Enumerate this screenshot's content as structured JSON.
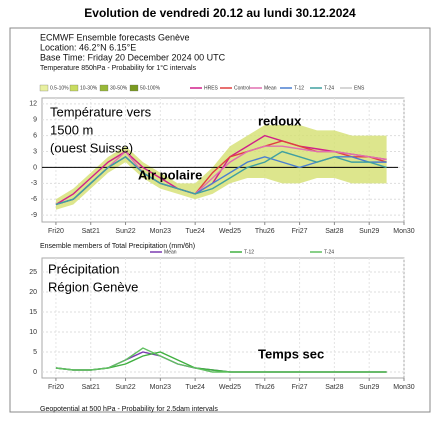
{
  "title": "Evolution de vendredi 20.12 au lundi 30.12.2024",
  "header": [
    "ECMWF Ensemble forecasts Genève",
    "Location: 46.2°N 6.15°E",
    "Base Time: Friday 20 December 2024 00 UTC",
    "Temperature 850hPa - Probability for 1°C intervals"
  ],
  "footer": "Geopotential at 500 hPa - Probability for 2.5dam intervals",
  "chart_data": [
    {
      "type": "line",
      "prob_legend": [
        {
          "label": "0.5-10%",
          "color": "#e8f0a0"
        },
        {
          "label": "10-30%",
          "color": "#c8dc60"
        },
        {
          "label": "30-50%",
          "color": "#98b838"
        },
        {
          "label": "50-100%",
          "color": "#7a9a20"
        }
      ],
      "legend_extra": [
        {
          "label": "ENS",
          "color": "#c8c8c8"
        }
      ],
      "x": [
        0,
        0.5,
        1,
        1.5,
        2,
        2.5,
        3,
        3.5,
        4,
        4.5,
        5,
        5.5,
        6,
        6.5,
        7,
        7.5,
        8,
        8.5,
        9,
        9.5
      ],
      "band": {
        "color": "#d4e070",
        "low": [
          -8,
          -7,
          -4,
          -1,
          1,
          -2,
          -4,
          -5,
          -6,
          -5,
          -3,
          -2,
          -2,
          -3,
          -3,
          -2,
          -2,
          -3,
          -3,
          -3
        ],
        "high": [
          -6,
          -4,
          -1,
          2,
          4,
          1,
          -1,
          -3,
          -3,
          0,
          4,
          6,
          8,
          8,
          8,
          7,
          7,
          6,
          6,
          6
        ]
      },
      "series": [
        {
          "name": "HRES",
          "color": "#d0208a",
          "values": [
            -7,
            -5,
            -2,
            1,
            3,
            0,
            -2,
            -4,
            -5,
            -3,
            2,
            4,
            6,
            5,
            4,
            3.5,
            3,
            2.5,
            2,
            1.5
          ]
        },
        {
          "name": "Control",
          "color": "#e04040",
          "values": [
            -7,
            -6,
            -3,
            0,
            2,
            -1,
            -3,
            -4,
            -5,
            -1,
            2,
            3,
            4,
            5,
            4,
            3,
            3,
            2,
            2,
            1
          ]
        },
        {
          "name": "Mean",
          "color": "#e070b0",
          "values": [
            -7,
            -6,
            -3,
            0,
            3,
            -1,
            -3,
            -4,
            -5,
            -2,
            1,
            3,
            4,
            4,
            3.5,
            3,
            3,
            2.5,
            2,
            1.5
          ]
        },
        {
          "name": "T-12",
          "color": "#4a7fd0",
          "values": [
            -7,
            -6,
            -3,
            0,
            2,
            -1,
            -3,
            -4,
            -5,
            -3,
            -1,
            1,
            2,
            1,
            0,
            1,
            2,
            2,
            1,
            1
          ]
        },
        {
          "name": "T-24",
          "color": "#40a0a0",
          "values": [
            -7,
            -6,
            -3,
            0,
            2,
            -1,
            -3,
            -4,
            -5,
            -4,
            -2,
            0,
            1,
            3,
            2,
            1,
            2,
            1,
            1,
            0
          ]
        }
      ],
      "hline": 0,
      "xlim": [
        -0.4,
        10
      ],
      "xticks": [
        {
          "value": 0,
          "label": "Fri20"
        },
        {
          "value": 1,
          "label": "Sat21"
        },
        {
          "value": 2,
          "label": "Sun22",
          "color": "#d03030"
        },
        {
          "value": 3,
          "label": "Mon23"
        },
        {
          "value": 4,
          "label": "Tue24"
        },
        {
          "value": 5,
          "label": "Wed25"
        },
        {
          "value": 6,
          "label": "Thu26"
        },
        {
          "value": 7,
          "label": "Fri27"
        },
        {
          "value": 8,
          "label": "Sat28"
        },
        {
          "value": 9,
          "label": "Sun29",
          "color": "#d03030"
        },
        {
          "value": 10,
          "label": "Mon30"
        }
      ],
      "ylim": [
        -10.3,
        13.1
      ],
      "yticks": [
        12,
        9,
        6,
        3,
        0,
        -3,
        -6,
        -9
      ],
      "grid": true,
      "annotations": [
        "Température vers",
        "1500 m",
        "(ouest Suisse)",
        "redoux",
        "Air polaire"
      ]
    },
    {
      "type": "line",
      "title": "Ensemble members of Total Precipitation (mm/6h)",
      "x": [
        0,
        0.5,
        1,
        1.5,
        2,
        2.5,
        3,
        3.5,
        4,
        4.5,
        5,
        5.5,
        6,
        6.5,
        7,
        7.5,
        8,
        8.5,
        9,
        9.5
      ],
      "series": [
        {
          "name": "Mean",
          "color": "#7a3ab0",
          "values": [
            1,
            0.5,
            0.5,
            1,
            3,
            5,
            4,
            2,
            1,
            0.5,
            0,
            0,
            0,
            0,
            0,
            0,
            0,
            0,
            0,
            0
          ]
        },
        {
          "name": "T-12",
          "color": "#40b040",
          "values": [
            1,
            0.5,
            0.5,
            1,
            2,
            4,
            5,
            3,
            1,
            0.5,
            0,
            0,
            0,
            0,
            0,
            0,
            0,
            0,
            0,
            0
          ]
        },
        {
          "name": "T-24",
          "color": "#60c060",
          "values": [
            1,
            0.5,
            0.5,
            1,
            3,
            6,
            4,
            2,
            1,
            0,
            0,
            0,
            0,
            0,
            0,
            0,
            0,
            0,
            0,
            0
          ]
        }
      ],
      "xlim": [
        -0.4,
        10
      ],
      "xticks": [
        {
          "value": 0,
          "label": "Fri20"
        },
        {
          "value": 1,
          "label": "Sat21"
        },
        {
          "value": 2,
          "label": "Sun22",
          "color": "#d03030"
        },
        {
          "value": 3,
          "label": "Mon23"
        },
        {
          "value": 4,
          "label": "Tue24"
        },
        {
          "value": 5,
          "label": "Wed25"
        },
        {
          "value": 6,
          "label": "Thu26"
        },
        {
          "value": 7,
          "label": "Fri27"
        },
        {
          "value": 8,
          "label": "Sat28"
        },
        {
          "value": 9,
          "label": "Sun29",
          "color": "#d03030"
        },
        {
          "value": 10,
          "label": "Mon30"
        }
      ],
      "ylim": [
        -1.5,
        28.5
      ],
      "yticks": [
        25,
        20,
        15,
        10,
        5,
        0
      ],
      "grid": true,
      "annotations": [
        "Précipitation",
        "Région Genève",
        "Temps sec"
      ]
    }
  ]
}
